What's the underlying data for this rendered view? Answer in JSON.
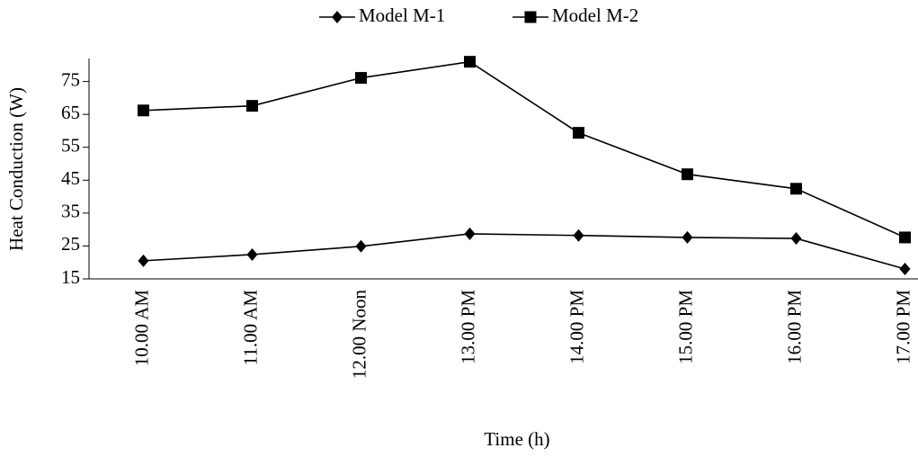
{
  "chart_data": {
    "type": "line",
    "x_label": "Time (h)",
    "y_label": "Heat Conduction (W)",
    "categories": [
      "10.00 AM",
      "11.00 AM",
      "12.00 Noon",
      "13.00 PM",
      "14.00 PM",
      "15.00 PM",
      "16.00 PM",
      "17.00 PM"
    ],
    "series": [
      {
        "name": "Model M-1",
        "color": "#000000",
        "marker": "diamond",
        "values": [
          20.5,
          22.4,
          24.9,
          28.7,
          28.2,
          27.6,
          27.3,
          18.0
        ]
      },
      {
        "name": "Model M-2",
        "color": "#000000",
        "marker": "square",
        "values": [
          66.2,
          67.6,
          76.1,
          81.0,
          59.4,
          46.8,
          42.4,
          27.6
        ]
      }
    ],
    "ylim": [
      15,
      82
    ],
    "yticks": [
      15,
      25,
      35,
      45,
      55,
      65,
      75
    ],
    "grid": false,
    "legend": "top"
  }
}
